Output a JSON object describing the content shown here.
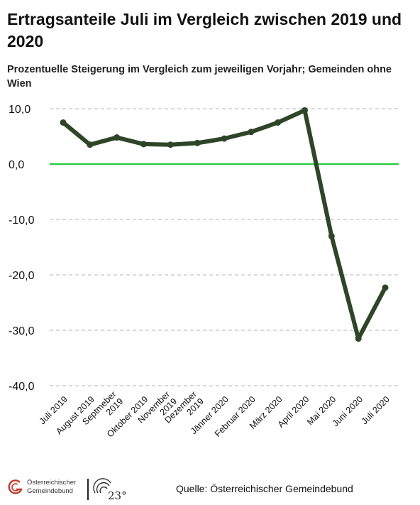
{
  "header": {
    "title": "Ertragsanteile Juli im Vergleich zwischen 2019 und 2020",
    "subtitle": "Prozentuelle Steigerung im Vergleich zum jeweiligen Vorjahr; Gemeinden ohne Wien"
  },
  "footer": {
    "logo_line1": "Österreichischer",
    "logo_line2": "Gemeindebund",
    "logo2_text": "23°",
    "source": "Quelle: Österreichischer Gemeindebund"
  },
  "colors": {
    "line": "#2e4527",
    "zero_line": "#2ecc40",
    "grid": "#b5b5b5",
    "logo_red": "#c0392b"
  },
  "chart_data": {
    "type": "line",
    "categories": [
      "Juli 2019",
      "August 2019",
      "Septmeber 2019",
      "Oktober 2019",
      "November 2019",
      "Dezember 2019",
      "Jänner 2020",
      "Februar 2020",
      "März 2020",
      "April 2020",
      "Mai 2020",
      "Juni 2020",
      "Juli 2020"
    ],
    "series": [
      {
        "values": [
          7.5,
          3.5,
          4.8,
          3.6,
          3.5,
          3.8,
          4.6,
          5.8,
          7.5,
          9.7,
          -13.0,
          -31.5,
          -22.3
        ]
      }
    ],
    "yticks": [
      "10,0",
      "0,0",
      "-10,0",
      "-20,0",
      "-30,0",
      "-40,0"
    ],
    "ytick_values": [
      10,
      0,
      -10,
      -20,
      -30,
      -40
    ],
    "ylim": [
      -40,
      10
    ],
    "grid": true,
    "legend": "none"
  }
}
